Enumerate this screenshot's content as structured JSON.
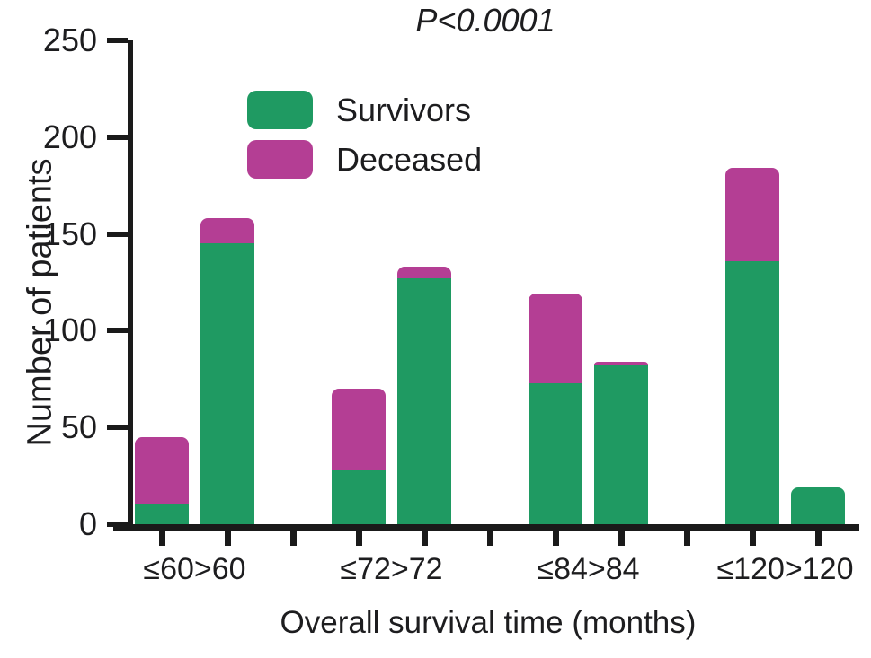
{
  "chart_data": {
    "type": "bar",
    "stacked": true,
    "title": "P<0.0001",
    "xlabel": "Overall survival time (months)",
    "ylabel": "Number of patients",
    "ylim": [
      0,
      250
    ],
    "yticks": [
      0,
      50,
      100,
      150,
      200,
      250
    ],
    "categories": [
      "≤60",
      ">60",
      "≤72",
      ">72",
      "≤84",
      ">84",
      "≤120",
      ">120"
    ],
    "group_labels": [
      "≤60>60",
      "≤72>72",
      "≤84>84",
      "≤120>120"
    ],
    "series": [
      {
        "name": "Survivors",
        "color": "#1f9a62",
        "values": [
          10,
          145,
          28,
          127,
          73,
          82,
          136,
          19
        ]
      },
      {
        "name": "Deceased",
        "color": "#b43e94",
        "values": [
          35,
          13,
          42,
          6,
          46,
          2,
          48,
          0
        ]
      }
    ],
    "grid": false,
    "legend_position": "upper-left-inside",
    "axis_color": "#1a1a1a"
  }
}
